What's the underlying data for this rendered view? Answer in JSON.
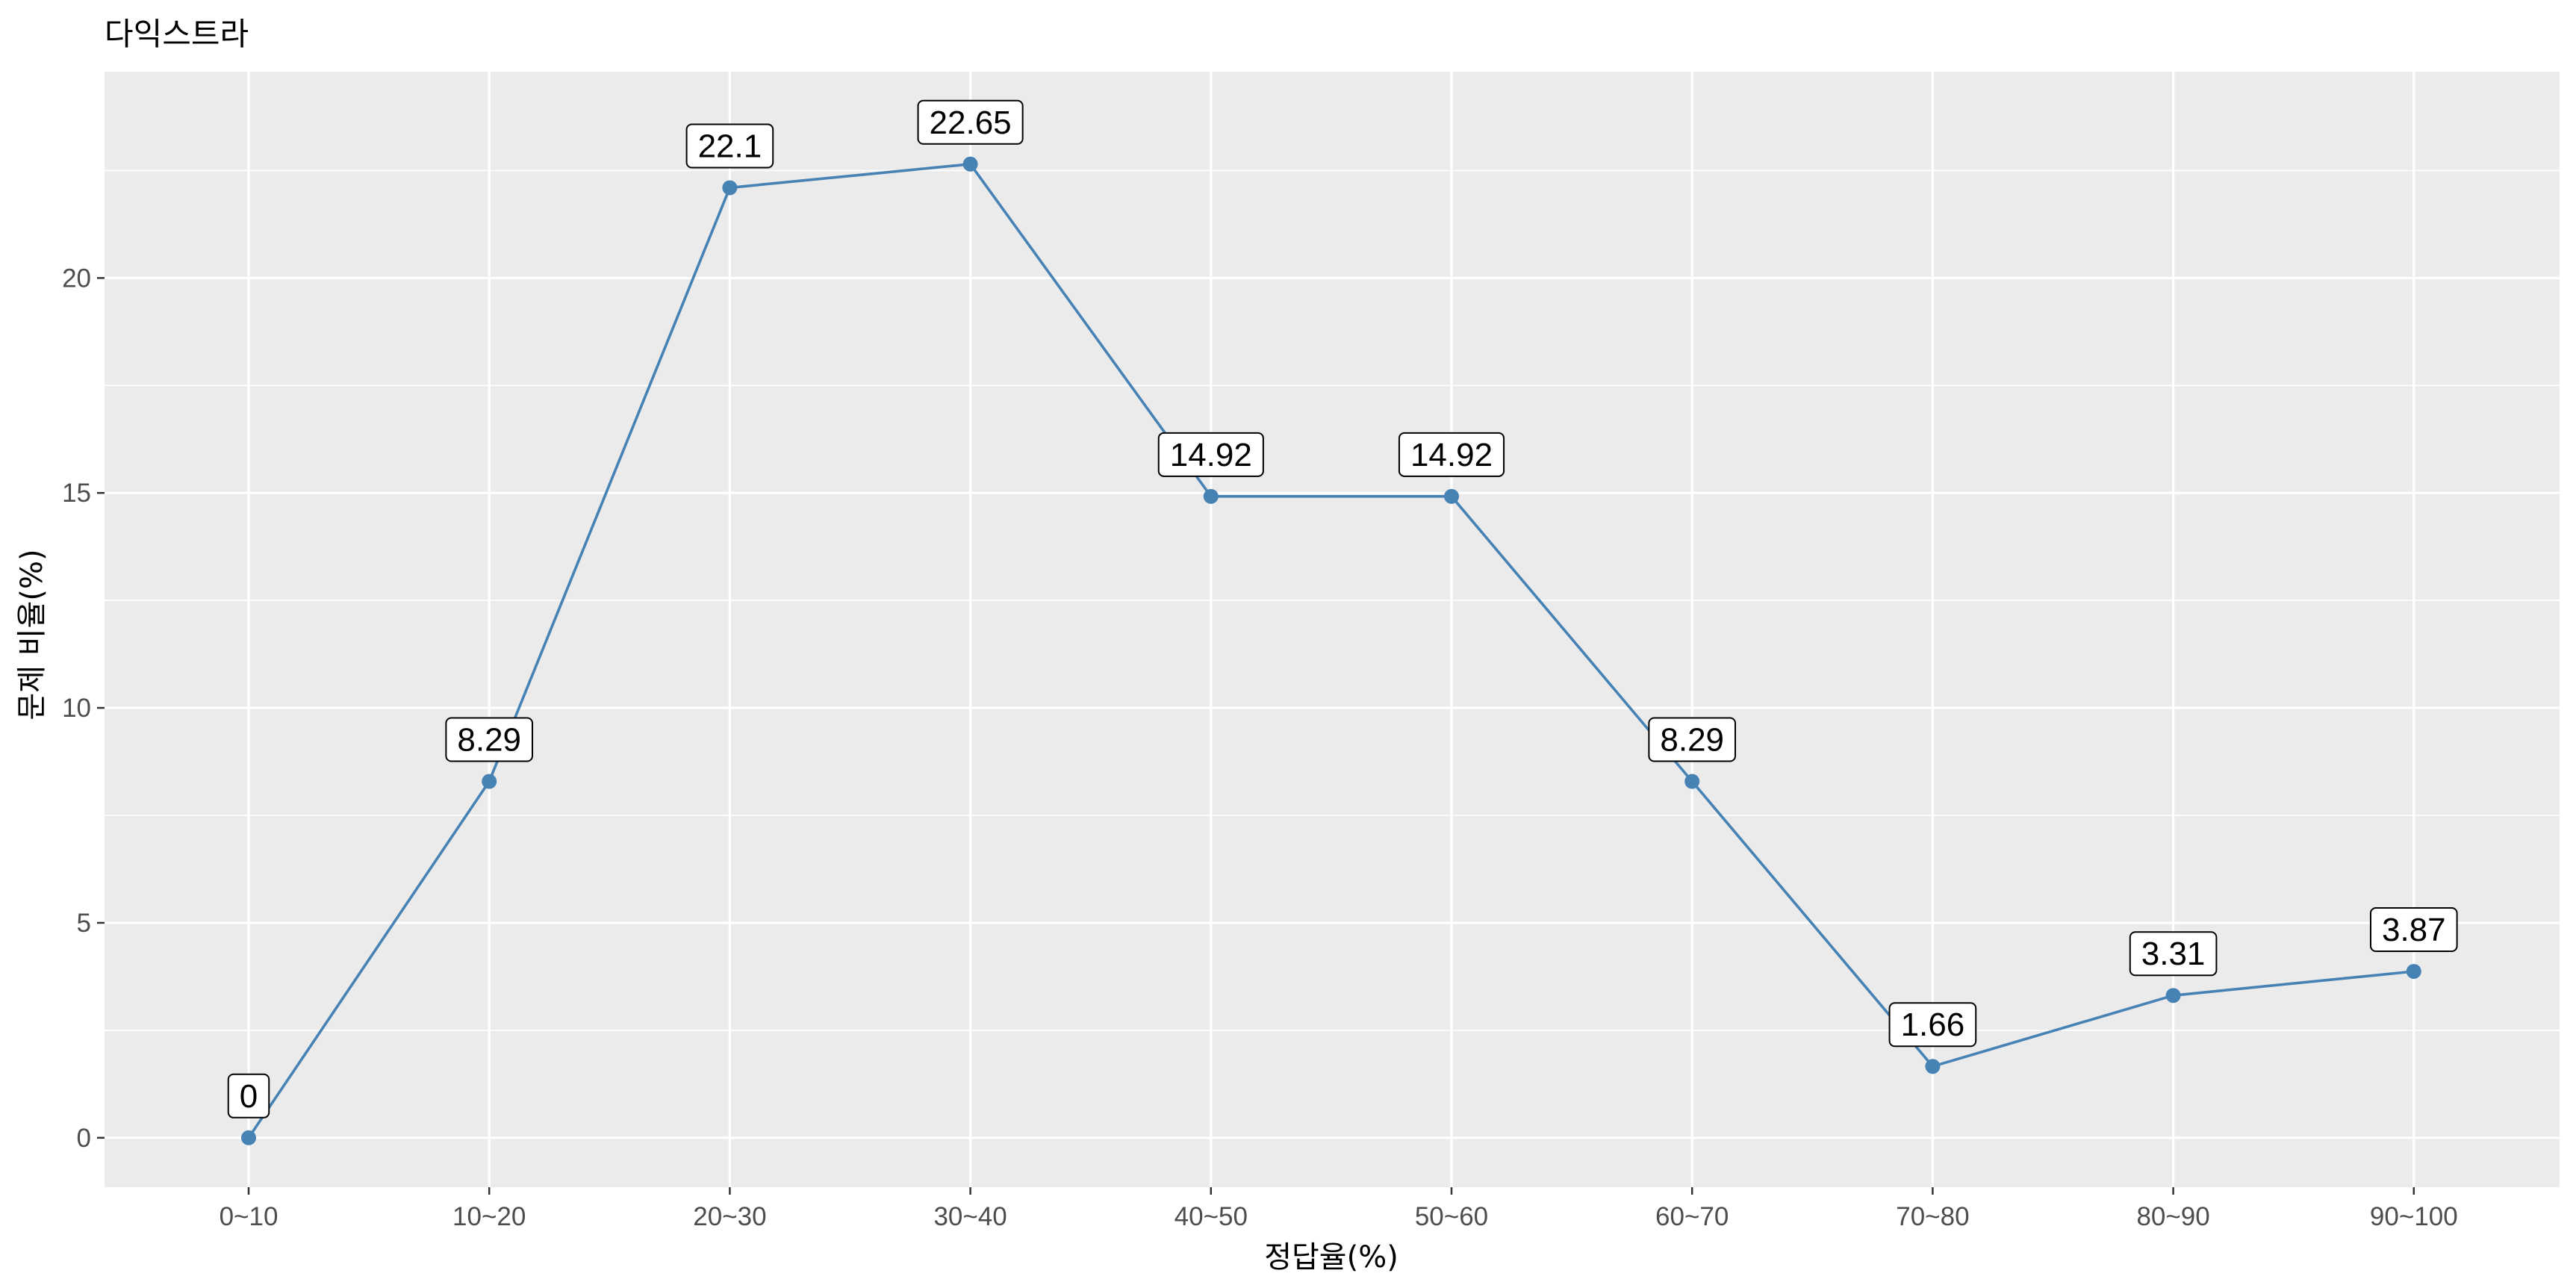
{
  "chart_data": {
    "type": "line",
    "title": "다익스트라",
    "xlabel": "정답율(%)",
    "ylabel": "문제 비율(%)",
    "categories": [
      "0~10",
      "10~20",
      "20~30",
      "30~40",
      "40~50",
      "50~60",
      "60~70",
      "70~80",
      "80~90",
      "90~100"
    ],
    "values": [
      0,
      8.29,
      22.1,
      22.65,
      14.92,
      14.92,
      8.29,
      1.66,
      3.31,
      3.87
    ],
    "data_labels": [
      "0",
      "8.29",
      "22.1",
      "22.65",
      "14.92",
      "14.92",
      "8.29",
      "1.66",
      "3.31",
      "3.87"
    ],
    "y_ticks": [
      0,
      5,
      10,
      15,
      20
    ],
    "y_tick_labels": [
      "0",
      "5",
      "10",
      "15",
      "20"
    ],
    "ylim": [
      -1.15,
      24.8
    ],
    "grid": true,
    "legend": "none",
    "colors": {
      "line": "#4682B4",
      "point": "#4682B4",
      "panel": "#EBEBEB",
      "grid": "#FFFFFF",
      "label_box_fill": "#FFFFFF",
      "label_box_border": "#000000",
      "tick_text": "#4D4D4D",
      "tick_mark": "#333333"
    }
  }
}
